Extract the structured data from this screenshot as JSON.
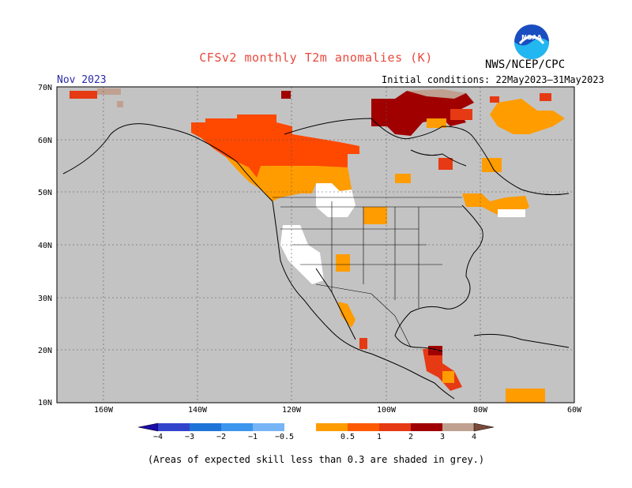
{
  "title": "CFSv2 monthly T2m anomalies (K)",
  "agency": "NWS/NCEP/CPC",
  "month_label": "Nov 2023",
  "initial_conditions": "Initial conditions: 22May2023–31May2023",
  "footnote": "(Areas of expected skill less than 0.3 are shaded in grey.)",
  "logo": {
    "text": "NOAA",
    "icon": "noaa-logo-icon"
  },
  "map": {
    "lon_range": [
      -170,
      -60
    ],
    "lat_range": [
      10,
      70
    ],
    "lon_ticks": [
      {
        "value": -160,
        "label": "160W"
      },
      {
        "value": -140,
        "label": "140W"
      },
      {
        "value": -120,
        "label": "120W"
      },
      {
        "value": -100,
        "label": "100W"
      },
      {
        "value": -80,
        "label": "80W"
      },
      {
        "value": -60,
        "label": "60W"
      }
    ],
    "lat_ticks": [
      {
        "value": 10,
        "label": "10N"
      },
      {
        "value": 20,
        "label": "20N"
      },
      {
        "value": 30,
        "label": "30N"
      },
      {
        "value": 40,
        "label": "40N"
      },
      {
        "value": 50,
        "label": "50N"
      },
      {
        "value": 60,
        "label": "60N"
      },
      {
        "value": 70,
        "label": "70N"
      }
    ],
    "background_color": "#c3c3c3",
    "gridlines": "dashed"
  },
  "colorbar": {
    "colors": [
      "#1c0ca8",
      "#3344cc",
      "#1f74d7",
      "#3c96ee",
      "#76b4f6",
      "#ffffff",
      "#ff9c00",
      "#ff5a00",
      "#e63a14",
      "#a00000",
      "#c0a090",
      "#7a4a3a"
    ],
    "labels": [
      "−4",
      "−3",
      "−2",
      "−1",
      "−0.5",
      "0.5",
      "1",
      "2",
      "3",
      "4"
    ]
  },
  "anomaly_regions": [
    {
      "name": "Alaska/Yukon",
      "color": "#ff5a00",
      "level": "1-2"
    },
    {
      "name": "Western Canada",
      "color": "#ff5a00",
      "level": "1-2"
    },
    {
      "name": "Hudson Bay",
      "color": "#a00000",
      "level": "3-4"
    },
    {
      "name": "Central America",
      "color": "#e63a14",
      "level": "2-3"
    },
    {
      "name": "Eastern Canada",
      "color": "#ff9c00",
      "level": "0.5-1"
    }
  ]
}
